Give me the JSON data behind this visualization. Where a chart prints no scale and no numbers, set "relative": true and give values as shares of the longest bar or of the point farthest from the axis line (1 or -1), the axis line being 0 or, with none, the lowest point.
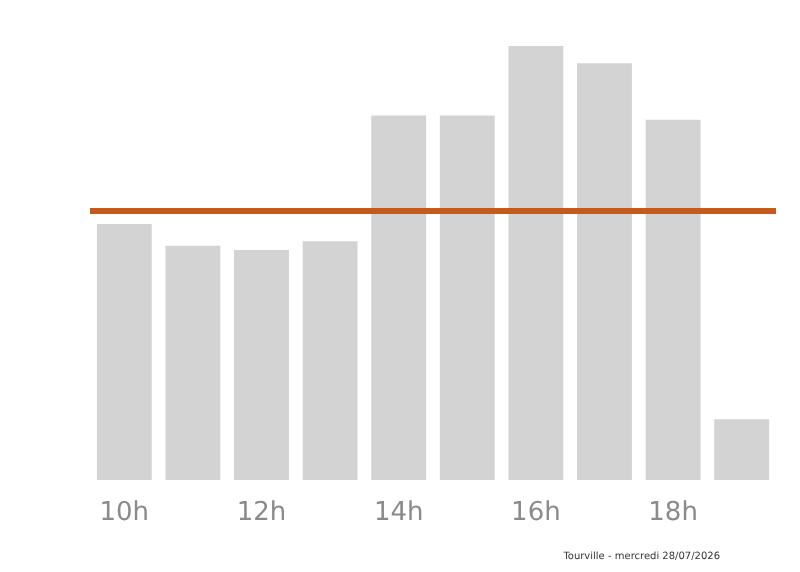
{
  "chart_data": {
    "type": "bar",
    "relative": true,
    "categories": [
      "10h",
      null,
      "12h",
      null,
      "14h",
      null,
      "16h",
      null,
      "18h",
      null
    ],
    "series": [
      {
        "color": "#d3d3d3",
        "values": [
          0.59,
          0.54,
          0.53,
          0.55,
          0.84,
          0.84,
          1,
          0.96,
          0.83,
          0.14
        ]
      }
    ],
    "ref_lines": [
      {
        "axis": "y",
        "value": 0.62,
        "color": "#c55a1c",
        "line_style": "solid"
      }
    ],
    "annotations": [
      "Tourville - mercredi 28/07/2026"
    ],
    "grid": false
  }
}
